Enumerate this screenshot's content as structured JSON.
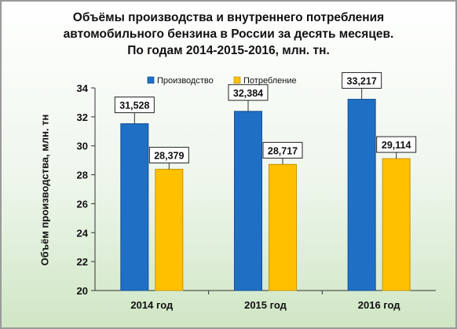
{
  "chart_data": {
    "type": "bar",
    "title_lines": [
      "Объёмы производства и внутреннего потребления",
      "автомобильного бензина в России за десять месяцев.",
      "По годам 2014-2015-2016, млн. тн."
    ],
    "ylabel": "Объём производства, млн. тн",
    "xlabel": "",
    "categories": [
      "2014 год",
      "2015 год",
      "2016 год"
    ],
    "series": [
      {
        "name": "Производство",
        "color": "#1f6fc5",
        "values": [
          31.528,
          32.384,
          33.217
        ],
        "labels": [
          "31,528",
          "32,384",
          "33,217"
        ]
      },
      {
        "name": "Потребление",
        "color": "#ffc000",
        "values": [
          28.379,
          28.717,
          29.114
        ],
        "labels": [
          "28,379",
          "28,717",
          "29,114"
        ]
      }
    ],
    "ylim": [
      20,
      34
    ],
    "yticks": [
      20,
      22,
      24,
      26,
      28,
      30,
      32,
      34
    ],
    "grid": false,
    "legend_position": "top-center"
  }
}
